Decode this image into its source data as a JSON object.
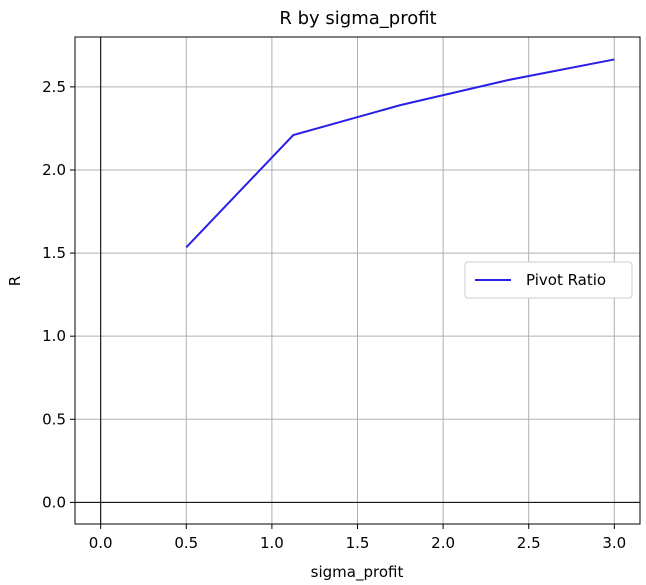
{
  "chart_data": {
    "type": "line",
    "title": "R by sigma_profit",
    "xlabel": "sigma_profit",
    "ylabel": "R",
    "xlim": [
      -0.15,
      3.15
    ],
    "ylim": [
      -0.13,
      2.8
    ],
    "xticks": [
      0.0,
      0.5,
      1.0,
      1.5,
      2.0,
      2.5,
      3.0
    ],
    "xtick_labels": [
      "0.0",
      "0.5",
      "1.0",
      "1.5",
      "2.0",
      "2.5",
      "3.0"
    ],
    "yticks": [
      0.0,
      0.5,
      1.0,
      1.5,
      2.0,
      2.5
    ],
    "ytick_labels": [
      "0.0",
      "0.5",
      "1.0",
      "1.5",
      "2.0",
      "2.5"
    ],
    "grid": true,
    "reference_lines": {
      "x": 0,
      "y": 0
    },
    "legend_position": "center-right",
    "series": [
      {
        "name": "Pivot Ratio",
        "color": "#2a1fe6",
        "x": [
          0.5,
          1.125,
          1.75,
          2.375,
          3.0
        ],
        "y": [
          1.535,
          2.21,
          2.39,
          2.54,
          2.665
        ]
      }
    ]
  }
}
